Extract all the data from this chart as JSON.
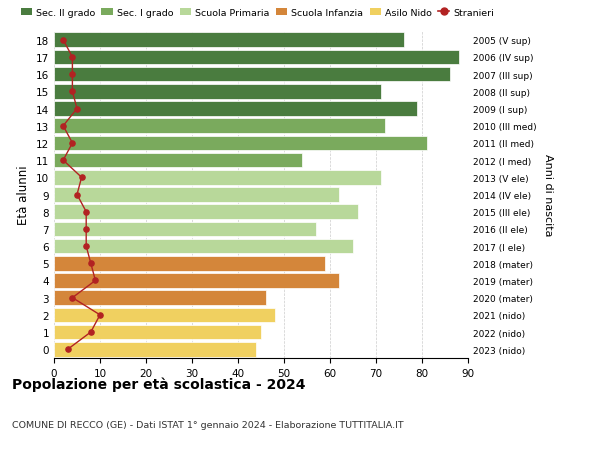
{
  "ages": [
    18,
    17,
    16,
    15,
    14,
    13,
    12,
    11,
    10,
    9,
    8,
    7,
    6,
    5,
    4,
    3,
    2,
    1,
    0
  ],
  "bar_values": [
    76,
    88,
    86,
    71,
    79,
    72,
    81,
    54,
    71,
    62,
    66,
    57,
    65,
    59,
    62,
    46,
    48,
    45,
    44
  ],
  "stranieri": [
    2,
    4,
    4,
    4,
    5,
    2,
    4,
    2,
    6,
    5,
    7,
    7,
    7,
    8,
    9,
    4,
    10,
    8,
    3
  ],
  "right_labels": [
    "2005 (V sup)",
    "2006 (IV sup)",
    "2007 (III sup)",
    "2008 (II sup)",
    "2009 (I sup)",
    "2010 (III med)",
    "2011 (II med)",
    "2012 (I med)",
    "2013 (V ele)",
    "2014 (IV ele)",
    "2015 (III ele)",
    "2016 (II ele)",
    "2017 (I ele)",
    "2018 (mater)",
    "2019 (mater)",
    "2020 (mater)",
    "2021 (nido)",
    "2022 (nido)",
    "2023 (nido)"
  ],
  "bar_colors": [
    "#4a7c3f",
    "#4a7c3f",
    "#4a7c3f",
    "#4a7c3f",
    "#4a7c3f",
    "#7aaa5d",
    "#7aaa5d",
    "#7aaa5d",
    "#b8d89a",
    "#b8d89a",
    "#b8d89a",
    "#b8d89a",
    "#b8d89a",
    "#d4863a",
    "#d4863a",
    "#d4863a",
    "#f0d060",
    "#f0d060",
    "#f0d060"
  ],
  "legend_labels": [
    "Sec. II grado",
    "Sec. I grado",
    "Scuola Primaria",
    "Scuola Infanzia",
    "Asilo Nido",
    "Stranieri"
  ],
  "legend_colors": [
    "#4a7c3f",
    "#7aaa5d",
    "#b8d89a",
    "#d4863a",
    "#f0d060",
    "#b22222"
  ],
  "title": "Popolazione per età scolastica - 2024",
  "subtitle": "COMUNE DI RECCO (GE) - Dati ISTAT 1° gennaio 2024 - Elaborazione TUTTITALIA.IT",
  "ylabel": "Età alunni",
  "right_ylabel": "Anni di nascita",
  "xlim": [
    0,
    90
  ],
  "xticks": [
    0,
    10,
    20,
    30,
    40,
    50,
    60,
    70,
    80,
    90
  ],
  "stranieri_color": "#b22222",
  "background_color": "#ffffff",
  "grid_color": "#cccccc"
}
